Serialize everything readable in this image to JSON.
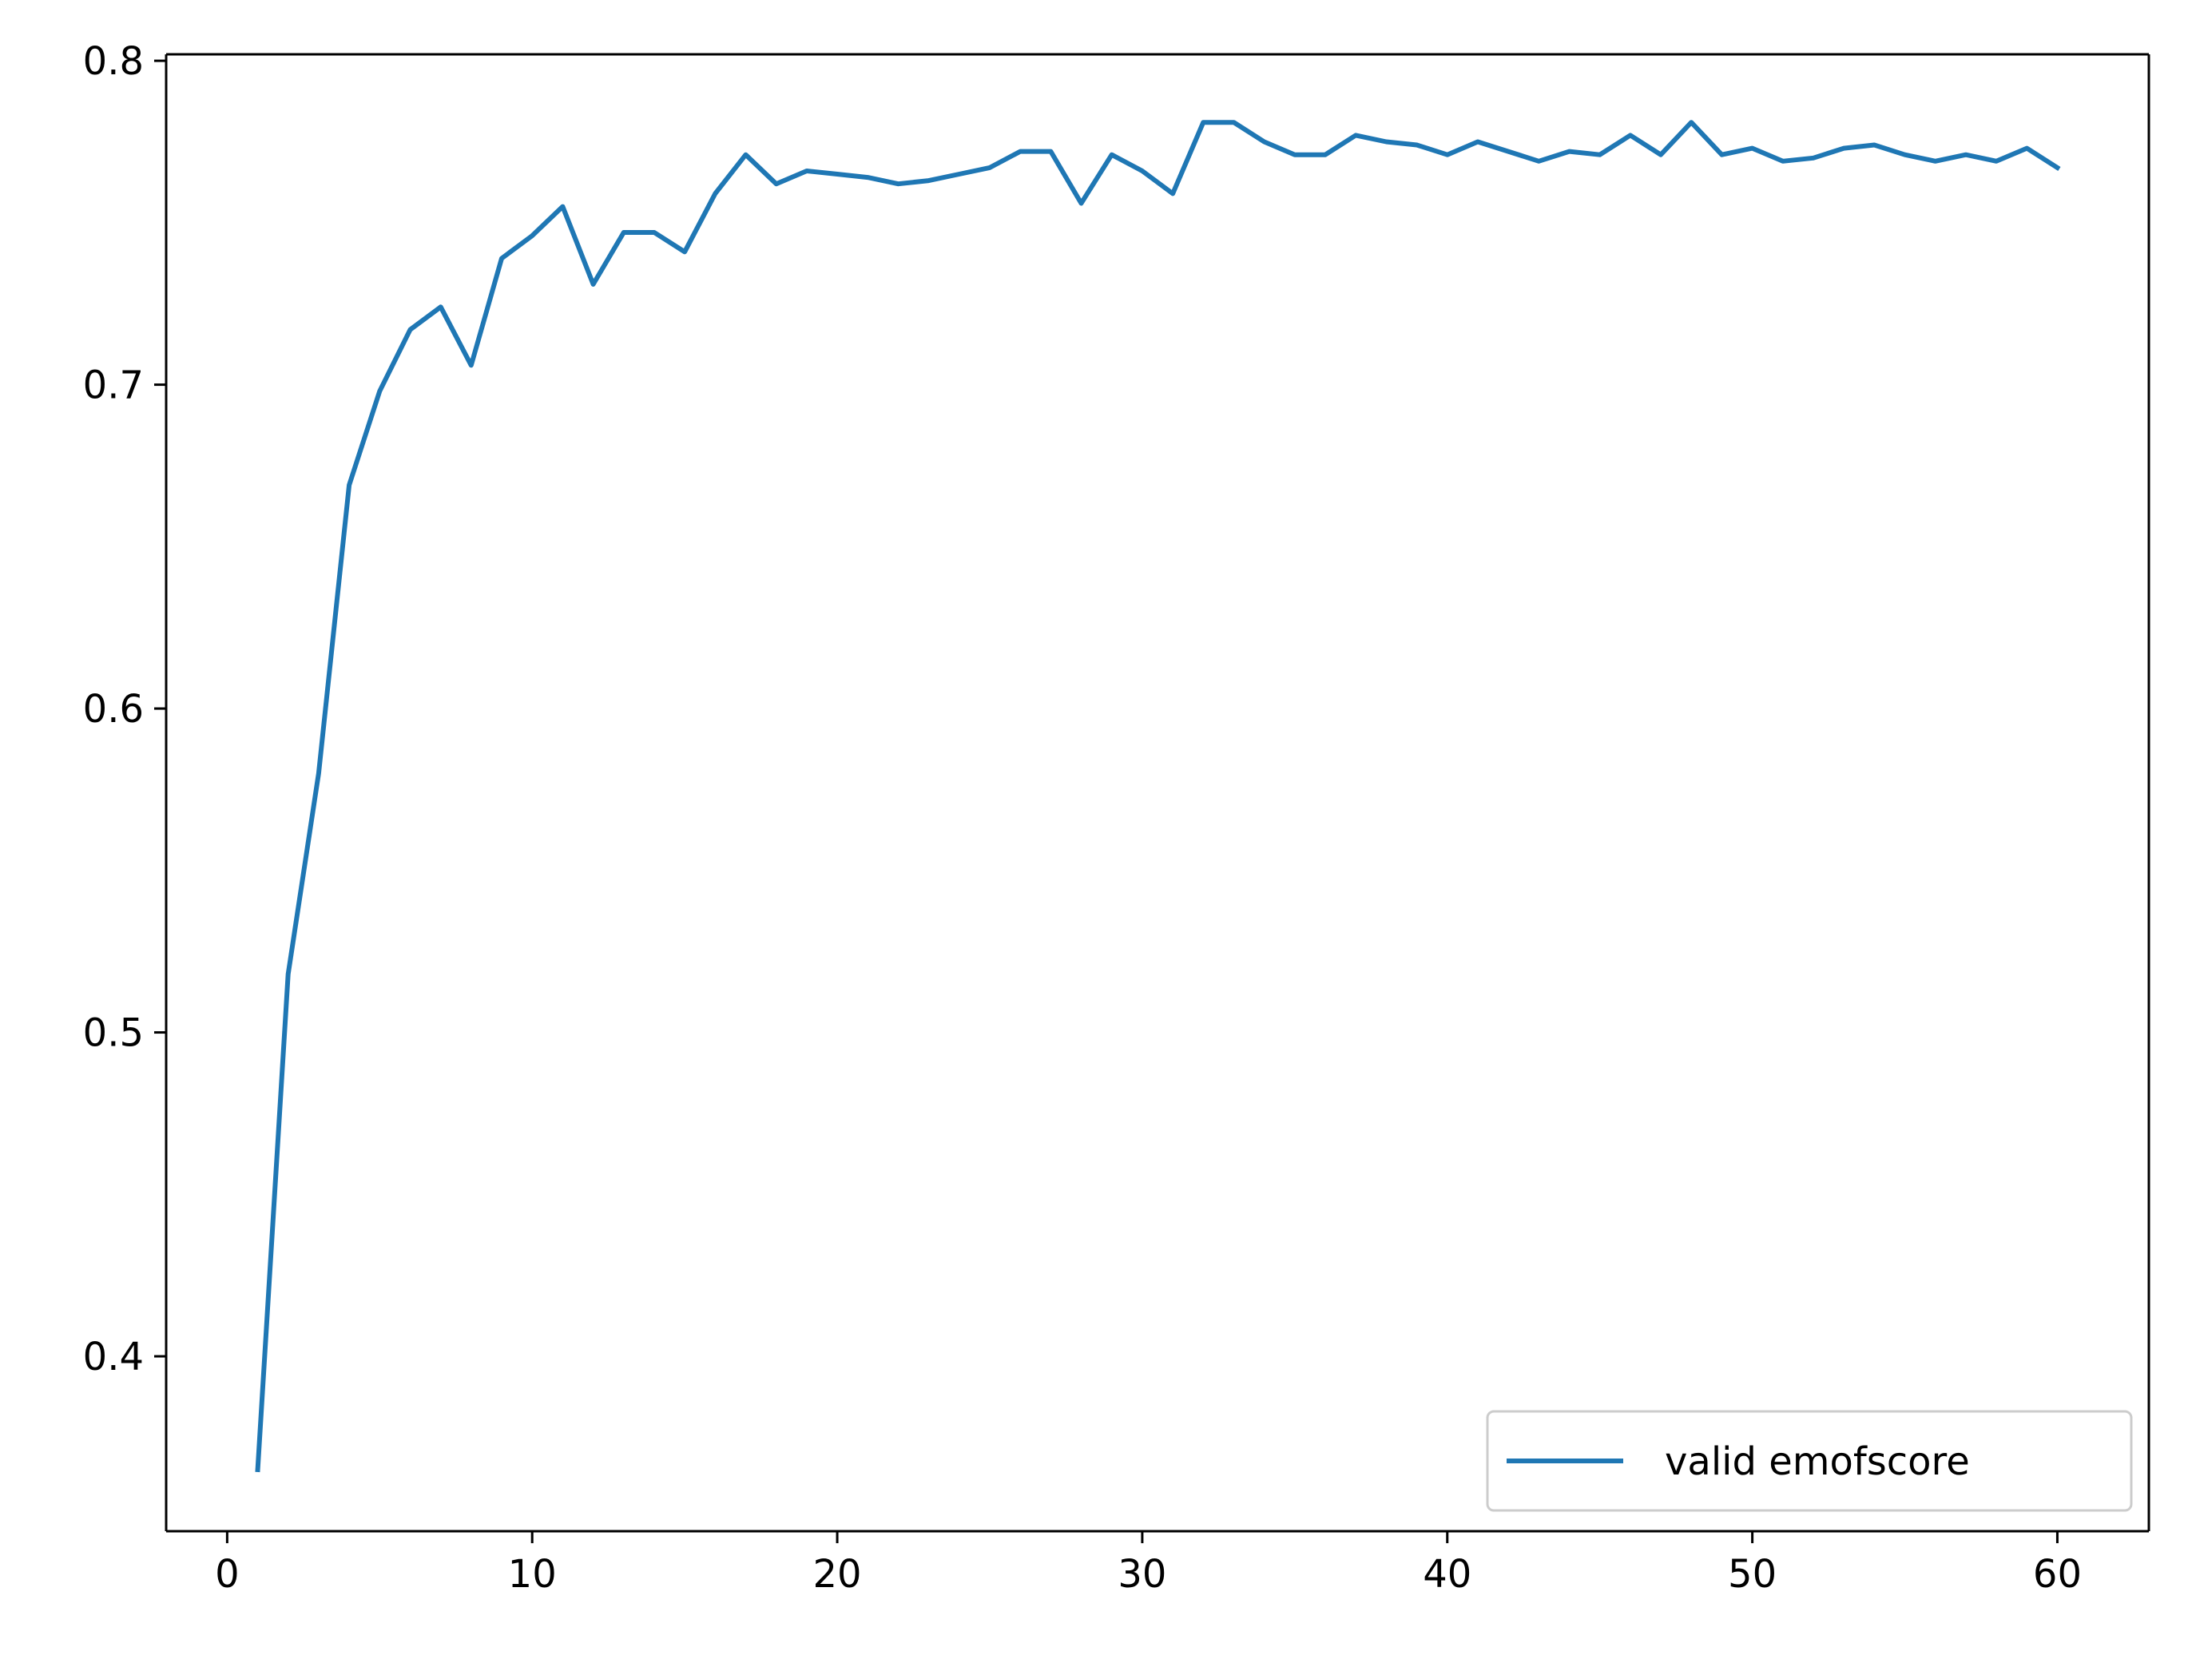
{
  "chart_data": {
    "type": "line",
    "title": "",
    "xlabel": "",
    "ylabel": "",
    "xlim": [
      -2,
      63
    ],
    "ylim": [
      0.346,
      0.802
    ],
    "x_ticks": [
      0,
      10,
      20,
      30,
      40,
      50,
      60
    ],
    "x_tick_labels": [
      "0",
      "10",
      "20",
      "30",
      "40",
      "50",
      "60"
    ],
    "y_ticks": [
      0.4,
      0.5,
      0.6,
      0.7,
      0.8
    ],
    "y_tick_labels": [
      "0.4",
      "0.5",
      "0.6",
      "0.7",
      "0.8"
    ],
    "grid": false,
    "legend_position": "lower-right",
    "series": [
      {
        "name": "valid emofscore",
        "color": "#1f77b4",
        "x": [
          1,
          2,
          3,
          4,
          5,
          6,
          7,
          8,
          9,
          10,
          11,
          12,
          13,
          14,
          15,
          16,
          17,
          18,
          19,
          20,
          21,
          22,
          23,
          24,
          25,
          26,
          27,
          28,
          29,
          30,
          31,
          32,
          33,
          34,
          35,
          36,
          37,
          38,
          39,
          40,
          41,
          42,
          43,
          44,
          45,
          46,
          47,
          48,
          49,
          50,
          51,
          52,
          53,
          54,
          55,
          56,
          57,
          58,
          59,
          60
        ],
        "values": [
          0.365,
          0.518,
          0.58,
          0.669,
          0.698,
          0.717,
          0.724,
          0.706,
          0.739,
          0.746,
          0.755,
          0.731,
          0.747,
          0.747,
          0.741,
          0.759,
          0.771,
          0.762,
          0.766,
          0.765,
          0.764,
          0.762,
          0.763,
          0.765,
          0.767,
          0.772,
          0.772,
          0.756,
          0.771,
          0.766,
          0.759,
          0.781,
          0.781,
          0.775,
          0.771,
          0.771,
          0.777,
          0.775,
          0.774,
          0.771,
          0.775,
          0.772,
          0.769,
          0.772,
          0.771,
          0.777,
          0.771,
          0.781,
          0.771,
          0.773,
          0.769,
          0.77,
          0.773,
          0.774,
          0.771,
          0.769,
          0.771,
          0.769,
          0.773,
          0.767
        ]
      }
    ]
  }
}
